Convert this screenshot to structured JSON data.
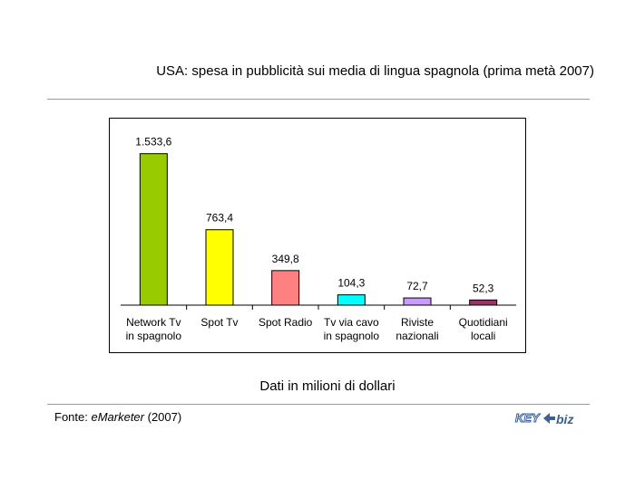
{
  "title": "USA: spesa in pubblicità sui media di lingua spagnola (prima metà 2007)",
  "subtitle": "Dati in milioni di dollari",
  "source": {
    "prefix": "Fonte: ",
    "name": "eMarketer",
    "suffix": " (2007)"
  },
  "logo": {
    "left": "KEY",
    "right": "biz",
    "icon": "key4biz-logo"
  },
  "chart_data": {
    "type": "bar",
    "categories": [
      [
        "Network Tv",
        "in spagnolo"
      ],
      [
        "Spot Tv"
      ],
      [
        "Spot Radio"
      ],
      [
        "Tv via cavo",
        "in spagnolo"
      ],
      [
        "Riviste",
        "nazionali"
      ],
      [
        "Quotidiani",
        "locali"
      ]
    ],
    "values": [
      1533.6,
      763.4,
      349.8,
      104.3,
      72.7,
      52.3
    ],
    "value_labels": [
      "1.533,6",
      "763,4",
      "349,8",
      "104,3",
      "72,7",
      "52,3"
    ],
    "colors": [
      "#99cc00",
      "#ffff00",
      "#ff8080",
      "#00ffff",
      "#cc99ff",
      "#993366"
    ],
    "ylim": [
      0,
      1650
    ],
    "grid": false,
    "legend": "none"
  }
}
